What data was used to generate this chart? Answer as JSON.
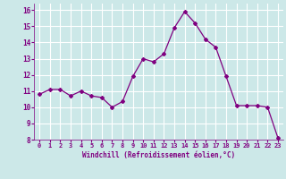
{
  "x": [
    0,
    1,
    2,
    3,
    4,
    5,
    6,
    7,
    8,
    9,
    10,
    11,
    12,
    13,
    14,
    15,
    16,
    17,
    18,
    19,
    20,
    21,
    22,
    23
  ],
  "y": [
    10.8,
    11.1,
    11.1,
    10.7,
    11.0,
    10.7,
    10.6,
    10.0,
    10.35,
    11.9,
    13.0,
    12.8,
    13.3,
    14.9,
    15.9,
    15.2,
    14.2,
    13.7,
    11.9,
    10.1,
    10.1,
    10.1,
    10.0,
    8.1
  ],
  "line_color": "#800080",
  "marker": "D",
  "marker_size": 2.0,
  "bg_color": "#cce8e8",
  "grid_color": "#aadddd",
  "xlabel": "Windchill (Refroidissement éolien,°C)",
  "xlabel_color": "#800080",
  "tick_color": "#800080",
  "ylim": [
    8,
    16.4
  ],
  "xlim": [
    -0.5,
    23.5
  ],
  "yticks": [
    8,
    9,
    10,
    11,
    12,
    13,
    14,
    15,
    16
  ],
  "xticks": [
    0,
    1,
    2,
    3,
    4,
    5,
    6,
    7,
    8,
    9,
    10,
    11,
    12,
    13,
    14,
    15,
    16,
    17,
    18,
    19,
    20,
    21,
    22,
    23
  ],
  "xtick_labels": [
    "0",
    "1",
    "2",
    "3",
    "4",
    "5",
    "6",
    "7",
    "8",
    "9",
    "10",
    "11",
    "12",
    "13",
    "14",
    "15",
    "16",
    "17",
    "18",
    "19",
    "20",
    "21",
    "22",
    "23"
  ]
}
